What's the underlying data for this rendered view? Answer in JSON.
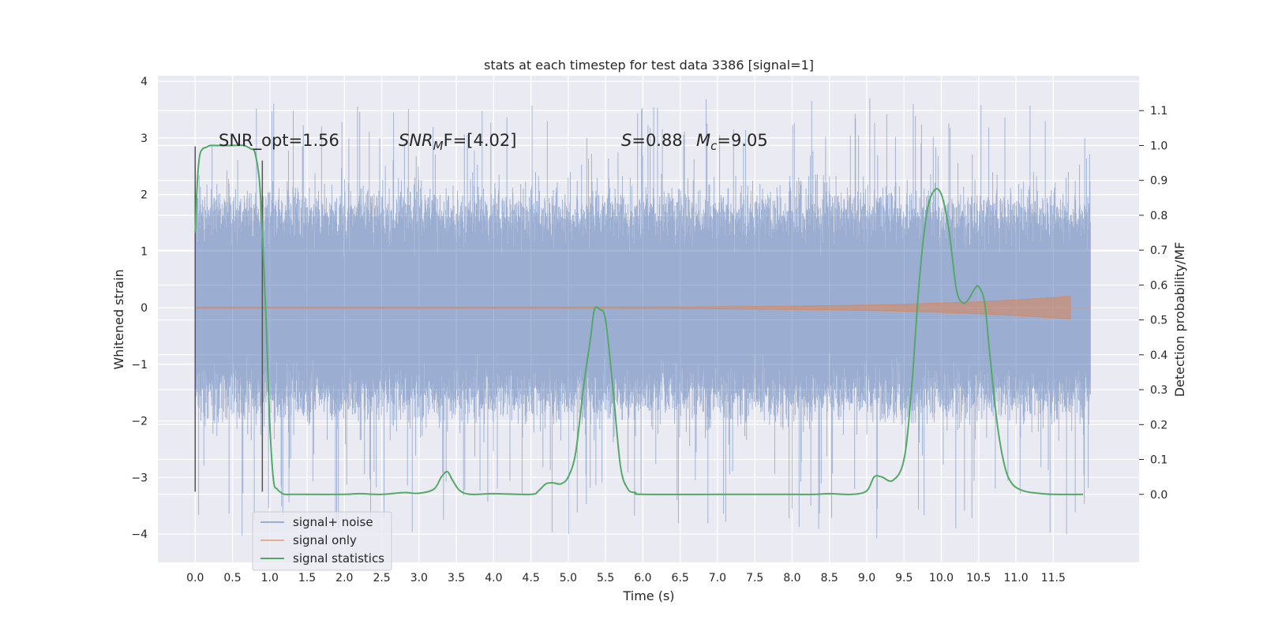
{
  "chart_data": {
    "type": "line",
    "title": "stats at each timestep for test data 3386 [signal=1]",
    "xlabel": "Time (s)",
    "ylabel": "Whitened strain",
    "y2label": "Detection probability/MF",
    "xlim": [
      -0.5,
      12.65
    ],
    "ylim": [
      -4.5,
      4.1
    ],
    "y2lim": [
      -0.195,
      1.2
    ],
    "xticks": [
      0.0,
      0.5,
      1.0,
      1.5,
      2.0,
      2.5,
      3.0,
      3.5,
      4.0,
      4.5,
      5.0,
      5.5,
      6.0,
      6.5,
      7.0,
      7.5,
      8.0,
      8.5,
      9.0,
      9.5,
      10.0,
      10.5,
      11.0,
      11.5
    ],
    "xtick_labels": [
      "0.0",
      "0.5",
      "1.0",
      "1.5",
      "2.0",
      "2.5",
      "3.0",
      "3.5",
      "4.0",
      "4.5",
      "5.0",
      "5.5",
      "6.0",
      "6.5",
      "7.0",
      "7.5",
      "8.0",
      "8.5",
      "9.0",
      "9.5",
      "10.0",
      "10.5",
      "11.0",
      "11.5"
    ],
    "yticks": [
      -4,
      -3,
      -2,
      -1,
      0,
      1,
      2,
      3,
      4
    ],
    "ytick_labels": [
      "−4",
      "−3",
      "−2",
      "−1",
      "0",
      "1",
      "2",
      "3",
      "4"
    ],
    "y2ticks": [
      0.0,
      0.1,
      0.2,
      0.3,
      0.4,
      0.5,
      0.6,
      0.7,
      0.8,
      0.9,
      1.0,
      1.1
    ],
    "y2tick_labels": [
      "0.0",
      "0.1",
      "0.2",
      "0.3",
      "0.4",
      "0.5",
      "0.6",
      "0.7",
      "0.8",
      "0.9",
      "1.0",
      "1.1"
    ],
    "grid": true,
    "legend_position": "bottom-left",
    "annotations": {
      "snr_opt": "SNR_opt=1.56",
      "snr_mf_base": "SNR",
      "snr_mf_sub": "M",
      "snr_mf_rest": "F=[4.02]",
      "s_sym": "S",
      "s_val": "=0.88",
      "mc_sym": "M",
      "mc_sub": "c",
      "mc_val": "=9.05"
    },
    "series": [
      {
        "name": "signal+ noise",
        "color": "#4c72b0",
        "kind": "noise",
        "x_range": [
          0.0,
          12.0
        ],
        "envelope_typical": [
          -1.5,
          1.6
        ],
        "peak_range": [
          -4.1,
          3.7
        ]
      },
      {
        "name": "signal only",
        "color": "#dd8452",
        "kind": "chirp",
        "x_range": [
          0.0,
          11.73
        ],
        "amplitude_max": 0.2,
        "axis": "left"
      },
      {
        "name": "signal statistics",
        "color": "#55a868",
        "axis": "right",
        "x": [
          0.0,
          0.03,
          0.06,
          0.1,
          0.15,
          0.2,
          0.3,
          0.5,
          0.65,
          0.75,
          0.8,
          0.86,
          0.9,
          0.95,
          1.0,
          1.05,
          1.1,
          1.15,
          1.2,
          1.3,
          1.5,
          2.0,
          2.2,
          2.5,
          2.8,
          3.0,
          3.2,
          3.3,
          3.38,
          3.45,
          3.55,
          3.7,
          4.0,
          4.5,
          4.6,
          4.7,
          4.8,
          4.9,
          5.0,
          5.1,
          5.2,
          5.3,
          5.35,
          5.42,
          5.5,
          5.6,
          5.7,
          5.8,
          5.9,
          6.0,
          7.0,
          8.0,
          8.3,
          8.5,
          8.8,
          9.0,
          9.1,
          9.2,
          9.35,
          9.5,
          9.6,
          9.7,
          9.8,
          9.9,
          10.0,
          10.1,
          10.2,
          10.28,
          10.35,
          10.45,
          10.5,
          10.58,
          10.65,
          10.75,
          10.85,
          10.95,
          11.1,
          11.3,
          11.5,
          11.9
        ],
        "y": [
          0.75,
          0.9,
          0.97,
          0.99,
          0.995,
          1.0,
          1.0,
          1.0,
          1.0,
          0.99,
          0.98,
          0.9,
          0.75,
          0.5,
          0.2,
          0.04,
          0.015,
          0.005,
          0.0,
          0.0,
          0.0,
          0.0,
          0.002,
          0.0,
          0.005,
          0.003,
          0.015,
          0.05,
          0.065,
          0.04,
          0.01,
          0.0,
          0.002,
          0.0,
          0.01,
          0.03,
          0.033,
          0.03,
          0.05,
          0.12,
          0.3,
          0.45,
          0.53,
          0.53,
          0.5,
          0.3,
          0.08,
          0.015,
          0.005,
          0.0,
          0.0,
          0.0,
          0.0,
          0.002,
          0.0,
          0.01,
          0.05,
          0.05,
          0.04,
          0.1,
          0.3,
          0.6,
          0.8,
          0.87,
          0.86,
          0.76,
          0.59,
          0.55,
          0.555,
          0.59,
          0.595,
          0.55,
          0.4,
          0.2,
          0.08,
          0.03,
          0.01,
          0.003,
          0.0,
          0.0
        ]
      }
    ],
    "vertical_markers": [
      {
        "x": 0.0,
        "y_range": [
          -3.25,
          2.85
        ]
      },
      {
        "x": 0.9,
        "y_range": [
          -3.25,
          2.6
        ]
      }
    ]
  }
}
